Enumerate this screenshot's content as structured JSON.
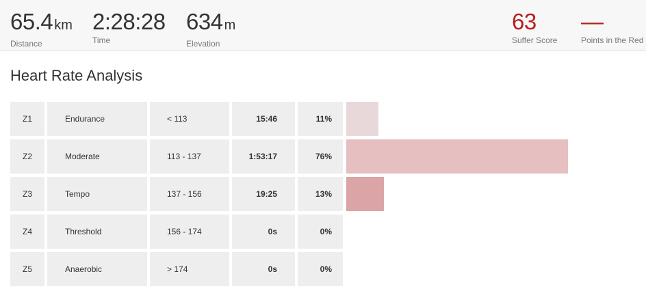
{
  "stats": {
    "distance": {
      "value": "65.4",
      "unit": "km",
      "label": "Distance"
    },
    "time": {
      "value": "2:28:28",
      "label": "Time"
    },
    "elevation": {
      "value": "634",
      "unit": "m",
      "label": "Elevation"
    },
    "suffer_score": {
      "value": "63",
      "label": "Suffer Score"
    },
    "points_in_red": {
      "value": "—",
      "label": "Points in the Red"
    }
  },
  "colors": {
    "accent_red": "#b41f1f"
  },
  "analysis": {
    "title": "Heart Rate Analysis",
    "zones": [
      {
        "zone": "Z1",
        "name": "Endurance",
        "range": "< 113",
        "time": "15:46",
        "percent": "11%",
        "fraction": 0.11,
        "color": "#e8d8d9"
      },
      {
        "zone": "Z2",
        "name": "Moderate",
        "range": "113 - 137",
        "time": "1:53:17",
        "percent": "76%",
        "fraction": 0.76,
        "color": "#e6bfc0"
      },
      {
        "zone": "Z3",
        "name": "Tempo",
        "range": "137 - 156",
        "time": "19:25",
        "percent": "13%",
        "fraction": 0.13,
        "color": "#dba4a6"
      },
      {
        "zone": "Z4",
        "name": "Threshold",
        "range": "156 - 174",
        "time": "0s",
        "percent": "0%",
        "fraction": 0,
        "color": "#d08a8d"
      },
      {
        "zone": "Z5",
        "name": "Anaerobic",
        "range": "> 174",
        "time": "0s",
        "percent": "0%",
        "fraction": 0,
        "color": "#c46f73"
      }
    ]
  }
}
